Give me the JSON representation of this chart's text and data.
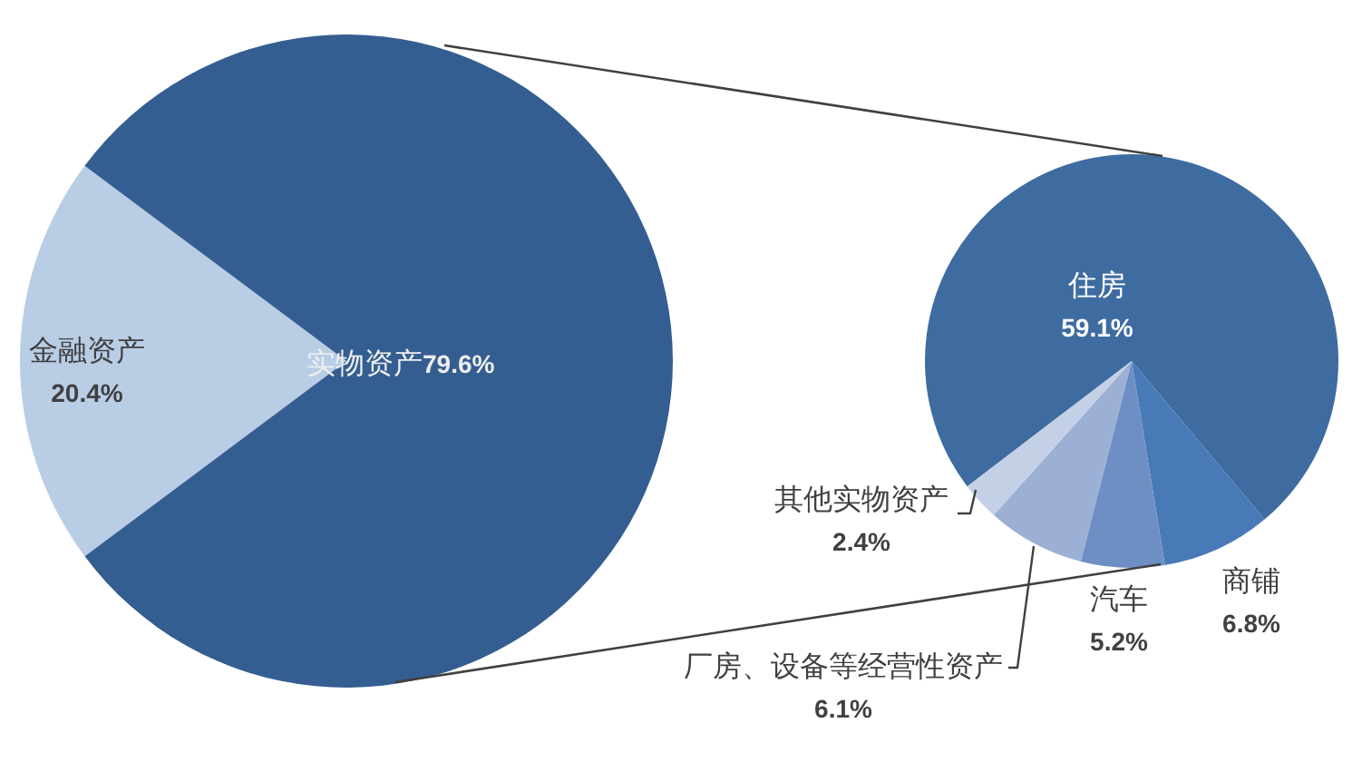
{
  "chart_data": [
    {
      "type": "pie",
      "categories": [
        "金融资产",
        "实物资产"
      ],
      "values": [
        20.4,
        79.6
      ],
      "colors": [
        "#b9cde5",
        "#345e91"
      ],
      "value_labels": [
        "20.4%",
        "79.6%"
      ]
    },
    {
      "type": "pie",
      "categories": [
        "住房",
        "商铺",
        "汽车",
        "厂房、设备等经营性资产",
        "其他实物资产"
      ],
      "values": [
        59.1,
        6.8,
        5.2,
        6.1,
        2.4
      ],
      "colors": [
        "#3e6ca0",
        "#487ab7",
        "#6e8fc4",
        "#9bb0d4",
        "#c4d0e6"
      ],
      "value_labels": [
        "59.1%",
        "6.8%",
        "5.2%",
        "6.1%",
        "2.4%"
      ]
    }
  ]
}
